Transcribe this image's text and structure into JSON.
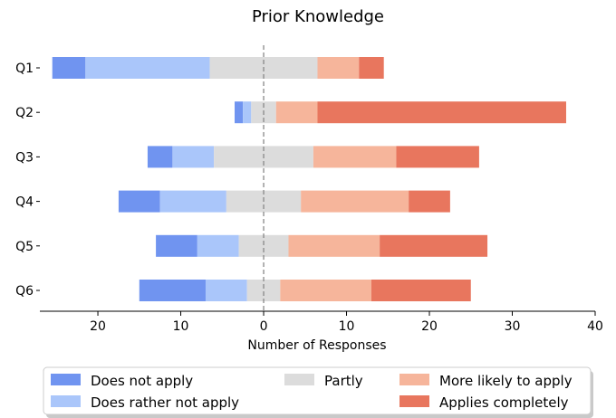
{
  "chart_data": {
    "type": "bar",
    "orientation": "horizontal",
    "stacked": "diverging",
    "title": "Prior Knowledge",
    "xlabel": "Number of Responses",
    "ylabel": "",
    "categories": [
      "Q1",
      "Q2",
      "Q3",
      "Q4",
      "Q5",
      "Q6"
    ],
    "center_value": 0,
    "xlim": [
      -27,
      40
    ],
    "xticks": [
      {
        "value": -20,
        "label": "20"
      },
      {
        "value": -10,
        "label": "10"
      },
      {
        "value": 0,
        "label": "0"
      },
      {
        "value": 10,
        "label": "10"
      },
      {
        "value": 20,
        "label": "20"
      },
      {
        "value": 30,
        "label": "30"
      },
      {
        "value": 40,
        "label": "40"
      }
    ],
    "series": [
      {
        "name": "Does not apply",
        "color": "#7094f0",
        "values": [
          4,
          1,
          3,
          5,
          5,
          8
        ]
      },
      {
        "name": "Does rather not apply",
        "color": "#aac6fa",
        "values": [
          15,
          1,
          5,
          8,
          5,
          5
        ]
      },
      {
        "name": "Partly",
        "color": "#dcdcdc",
        "values": [
          13,
          3,
          12,
          9,
          6,
          4
        ]
      },
      {
        "name": "More likely to apply",
        "color": "#f6b59b",
        "values": [
          5,
          5,
          10,
          13,
          11,
          11
        ]
      },
      {
        "name": "Applies completely",
        "color": "#e8765e",
        "values": [
          3,
          30,
          10,
          5,
          13,
          12
        ]
      }
    ],
    "legend": {
      "placement": "bottom",
      "columns": 3
    },
    "grid": false
  }
}
